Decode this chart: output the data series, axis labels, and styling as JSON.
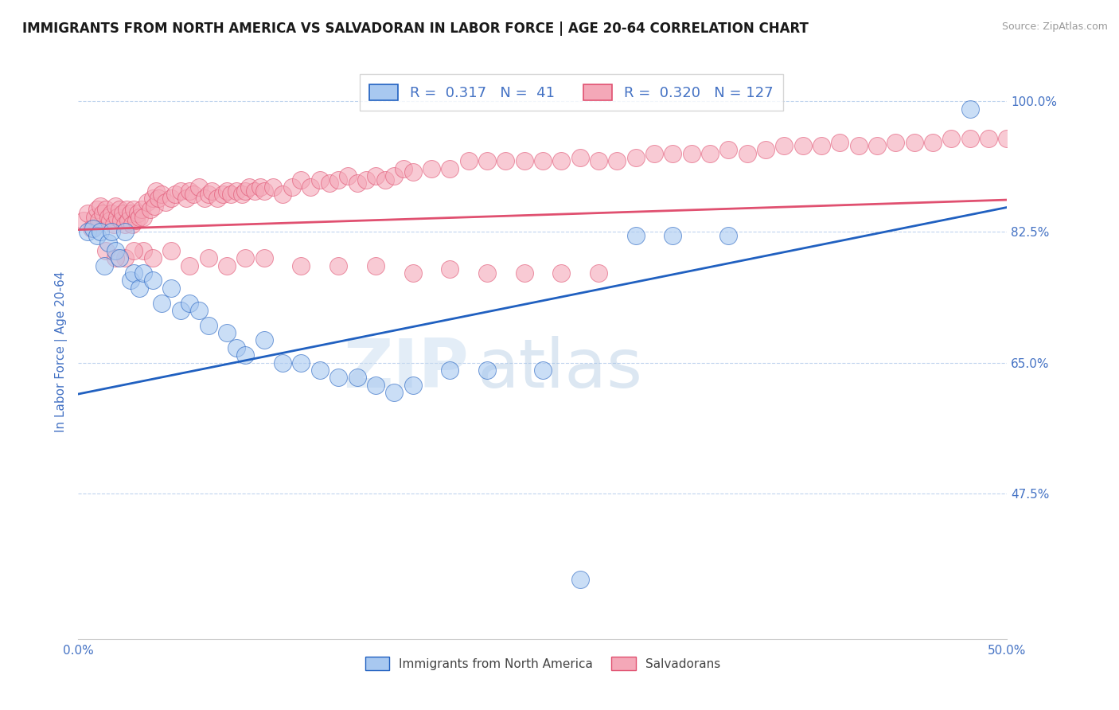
{
  "title": "IMMIGRANTS FROM NORTH AMERICA VS SALVADORAN IN LABOR FORCE | AGE 20-64 CORRELATION CHART",
  "source": "Source: ZipAtlas.com",
  "ylabel": "In Labor Force | Age 20-64",
  "xlim": [
    0.0,
    0.5
  ],
  "ylim": [
    0.28,
    1.05
  ],
  "yticks": [
    0.475,
    0.65,
    0.825,
    1.0
  ],
  "ytick_labels": [
    "47.5%",
    "65.0%",
    "82.5%",
    "100.0%"
  ],
  "xticks": [
    0.0,
    0.1,
    0.2,
    0.3,
    0.4,
    0.5
  ],
  "xtick_labels": [
    "0.0%",
    "",
    "",
    "",
    "",
    "50.0%"
  ],
  "blue_R": 0.317,
  "blue_N": 41,
  "pink_R": 0.32,
  "pink_N": 127,
  "blue_color": "#A8C8F0",
  "pink_color": "#F4A8B8",
  "blue_line_color": "#2060C0",
  "pink_line_color": "#E05070",
  "legend_label_blue": "Immigrants from North America",
  "legend_label_pink": "Salvadorans",
  "blue_scatter_x": [
    0.005,
    0.008,
    0.01,
    0.012,
    0.014,
    0.016,
    0.018,
    0.02,
    0.022,
    0.025,
    0.028,
    0.03,
    0.033,
    0.035,
    0.04,
    0.045,
    0.05,
    0.055,
    0.06,
    0.065,
    0.07,
    0.08,
    0.085,
    0.09,
    0.1,
    0.11,
    0.12,
    0.13,
    0.14,
    0.15,
    0.16,
    0.17,
    0.18,
    0.2,
    0.22,
    0.25,
    0.27,
    0.3,
    0.32,
    0.35,
    0.48
  ],
  "blue_scatter_y": [
    0.825,
    0.83,
    0.82,
    0.825,
    0.78,
    0.81,
    0.825,
    0.8,
    0.79,
    0.825,
    0.76,
    0.77,
    0.75,
    0.77,
    0.76,
    0.73,
    0.75,
    0.72,
    0.73,
    0.72,
    0.7,
    0.69,
    0.67,
    0.66,
    0.68,
    0.65,
    0.65,
    0.64,
    0.63,
    0.63,
    0.62,
    0.61,
    0.62,
    0.64,
    0.64,
    0.64,
    0.36,
    0.82,
    0.82,
    0.82,
    0.99
  ],
  "pink_scatter_x": [
    0.003,
    0.005,
    0.007,
    0.009,
    0.01,
    0.011,
    0.012,
    0.013,
    0.015,
    0.016,
    0.017,
    0.018,
    0.019,
    0.02,
    0.021,
    0.022,
    0.023,
    0.024,
    0.025,
    0.026,
    0.027,
    0.028,
    0.029,
    0.03,
    0.031,
    0.032,
    0.033,
    0.034,
    0.035,
    0.037,
    0.039,
    0.04,
    0.041,
    0.042,
    0.043,
    0.045,
    0.047,
    0.05,
    0.052,
    0.055,
    0.058,
    0.06,
    0.062,
    0.065,
    0.068,
    0.07,
    0.072,
    0.075,
    0.078,
    0.08,
    0.082,
    0.085,
    0.088,
    0.09,
    0.092,
    0.095,
    0.098,
    0.1,
    0.105,
    0.11,
    0.115,
    0.12,
    0.125,
    0.13,
    0.135,
    0.14,
    0.145,
    0.15,
    0.155,
    0.16,
    0.165,
    0.17,
    0.175,
    0.18,
    0.19,
    0.2,
    0.21,
    0.22,
    0.23,
    0.24,
    0.25,
    0.26,
    0.27,
    0.28,
    0.29,
    0.3,
    0.31,
    0.32,
    0.33,
    0.34,
    0.35,
    0.36,
    0.37,
    0.38,
    0.39,
    0.4,
    0.41,
    0.42,
    0.43,
    0.44,
    0.45,
    0.46,
    0.47,
    0.48,
    0.49,
    0.5,
    0.015,
    0.025,
    0.035,
    0.02,
    0.03,
    0.04,
    0.05,
    0.06,
    0.07,
    0.08,
    0.09,
    0.1,
    0.12,
    0.14,
    0.16,
    0.18,
    0.2,
    0.22,
    0.24,
    0.26,
    0.28
  ],
  "pink_scatter_y": [
    0.84,
    0.85,
    0.83,
    0.845,
    0.855,
    0.84,
    0.86,
    0.85,
    0.855,
    0.845,
    0.84,
    0.85,
    0.835,
    0.86,
    0.845,
    0.855,
    0.84,
    0.85,
    0.835,
    0.855,
    0.84,
    0.85,
    0.835,
    0.855,
    0.84,
    0.85,
    0.845,
    0.855,
    0.845,
    0.865,
    0.855,
    0.87,
    0.86,
    0.88,
    0.87,
    0.875,
    0.865,
    0.87,
    0.875,
    0.88,
    0.87,
    0.88,
    0.875,
    0.885,
    0.87,
    0.875,
    0.88,
    0.87,
    0.875,
    0.88,
    0.875,
    0.88,
    0.875,
    0.88,
    0.885,
    0.88,
    0.885,
    0.88,
    0.885,
    0.875,
    0.885,
    0.895,
    0.885,
    0.895,
    0.89,
    0.895,
    0.9,
    0.89,
    0.895,
    0.9,
    0.895,
    0.9,
    0.91,
    0.905,
    0.91,
    0.91,
    0.92,
    0.92,
    0.92,
    0.92,
    0.92,
    0.92,
    0.925,
    0.92,
    0.92,
    0.925,
    0.93,
    0.93,
    0.93,
    0.93,
    0.935,
    0.93,
    0.935,
    0.94,
    0.94,
    0.94,
    0.945,
    0.94,
    0.94,
    0.945,
    0.945,
    0.945,
    0.95,
    0.95,
    0.95,
    0.95,
    0.8,
    0.79,
    0.8,
    0.79,
    0.8,
    0.79,
    0.8,
    0.78,
    0.79,
    0.78,
    0.79,
    0.79,
    0.78,
    0.78,
    0.78,
    0.77,
    0.775,
    0.77,
    0.77,
    0.77,
    0.77
  ],
  "title_fontsize": 12,
  "axis_color": "#5B9BD5",
  "tick_color": "#4472C4",
  "grid_color": "#C0D4EE",
  "background_color": "#FFFFFF"
}
